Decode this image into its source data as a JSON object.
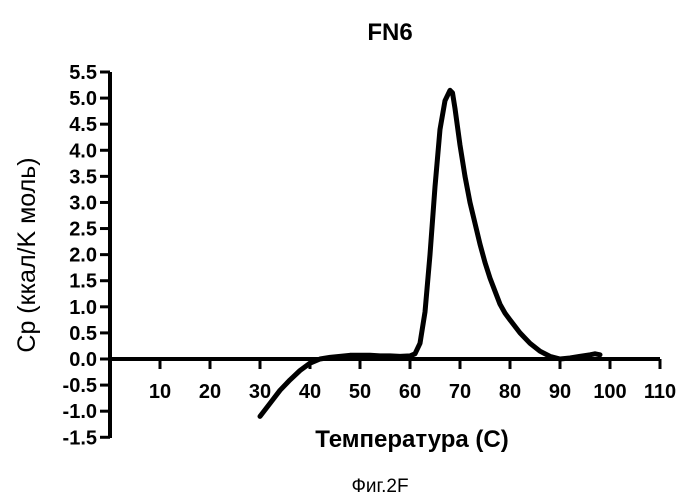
{
  "chart_data": {
    "type": "line",
    "title": "FN6",
    "xlabel": "Температура (C)",
    "ylabel": "Cp (ккал/K моль)",
    "xlim": [
      0,
      110
    ],
    "ylim": [
      -1.5,
      5.5
    ],
    "x_ticks": [
      "10",
      "20",
      "30",
      "40",
      "50",
      "60",
      "70",
      "80",
      "90",
      "100",
      "110"
    ],
    "y_ticks": [
      "5.5",
      "5.0",
      "4.5",
      "4.0",
      "3.5",
      "3.0",
      "2.5",
      "2.0",
      "1.5",
      "1.0",
      "0.5",
      "0.0",
      "-0.5",
      "-1.0",
      "-1.5"
    ],
    "grid": false,
    "series": [
      {
        "x": [
          30,
          32,
          34,
          36,
          38,
          40,
          42,
          44,
          46,
          48,
          50,
          52,
          54,
          56,
          58,
          60,
          61,
          62,
          63,
          64,
          65,
          66,
          67,
          68,
          68.5,
          69,
          70,
          71,
          72,
          73,
          74,
          75,
          76,
          77,
          78,
          79,
          80,
          82,
          84,
          86,
          88,
          90,
          92,
          94,
          96,
          97,
          98
        ],
        "y": [
          -1.1,
          -0.85,
          -0.6,
          -0.4,
          -0.22,
          -0.08,
          0.0,
          0.03,
          0.05,
          0.07,
          0.07,
          0.07,
          0.06,
          0.06,
          0.05,
          0.06,
          0.1,
          0.3,
          0.9,
          2.0,
          3.3,
          4.4,
          4.95,
          5.15,
          5.1,
          4.8,
          4.1,
          3.5,
          3.0,
          2.6,
          2.2,
          1.85,
          1.55,
          1.3,
          1.05,
          0.88,
          0.75,
          0.5,
          0.3,
          0.15,
          0.05,
          0.0,
          0.02,
          0.05,
          0.08,
          0.1,
          0.08
        ]
      }
    ]
  },
  "caption": "Фиг.2F"
}
